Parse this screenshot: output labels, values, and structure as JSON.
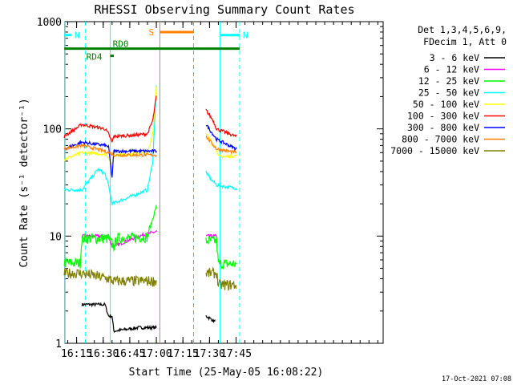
{
  "chart_data": {
    "type": "line",
    "title": "RHESSI Observing Summary Count Rates",
    "xlabel": "Start Time (25-May-05 16:08:22)",
    "ylabel": "Count Rate (s⁻¹ detector⁻¹)",
    "yscale": "log",
    "ylim": [
      1,
      1000
    ],
    "xlim_minutes_after_16_00": [
      8.4,
      188
    ],
    "x_ticks": [
      "16:15",
      "16:30",
      "16:45",
      "17:00",
      "17:15",
      "17:30",
      "17:45"
    ],
    "y_ticks": [
      "1",
      "10",
      "100",
      "1000"
    ],
    "footer_date": "17-Oct-2021 07:08",
    "legend_header": [
      "Det 1,3,4,5,6,9,",
      "FDecim 1, Att 0"
    ],
    "legend_placement": "right",
    "series": [
      {
        "name": "3 - 6 keV",
        "color": "#000000",
        "x": [
          "16:08",
          "16:17",
          "16:18",
          "16:31",
          "16:33",
          "16:35",
          "16:36",
          "16:50",
          "17:00",
          "17:01",
          "17:27",
          "17:28",
          "17:33",
          "17:34"
        ],
        "y": [
          null,
          null,
          2.3,
          2.3,
          1.8,
          1.8,
          1.3,
          1.4,
          1.4,
          null,
          null,
          1.8,
          1.6,
          null
        ]
      },
      {
        "name": "6 - 12 keV",
        "color": "#ff00ff",
        "x": [
          "16:17",
          "16:18",
          "16:33",
          "16:35",
          "16:36",
          "16:50",
          "17:00",
          "17:01",
          "17:27",
          "17:28",
          "17:34",
          "17:35"
        ],
        "y": [
          null,
          10,
          10,
          8,
          8,
          10,
          11,
          null,
          null,
          10,
          10,
          null
        ]
      },
      {
        "name": "12 - 25 keV",
        "color": "#00ff00",
        "x": [
          "16:08",
          "16:17",
          "16:18",
          "16:33",
          "16:36",
          "16:38",
          "16:55",
          "17:00",
          "17:01",
          "17:27",
          "17:28",
          "17:34",
          "17:35",
          "17:45"
        ],
        "y": [
          5.6,
          5.6,
          9.5,
          9.5,
          8,
          9.5,
          9.8,
          19,
          null,
          null,
          9,
          9,
          5.5,
          5.5
        ]
      },
      {
        "name": "25 - 50 keV",
        "color": "#00ffff",
        "x": [
          "16:08",
          "16:18",
          "16:27",
          "16:31",
          "16:33",
          "16:35",
          "16:50",
          "16:55",
          "16:58",
          "17:00",
          "17:01",
          "17:27",
          "17:28",
          "17:30",
          "17:34",
          "17:38",
          "17:45"
        ],
        "y": [
          27,
          27,
          42,
          38,
          30,
          20,
          25,
          27,
          50,
          250,
          null,
          null,
          40,
          35,
          30,
          29,
          28
        ]
      },
      {
        "name": "50 - 100 keV",
        "color": "#ffff00",
        "x": [
          "16:08",
          "16:18",
          "16:31",
          "16:33",
          "16:35",
          "16:36",
          "16:55",
          "16:58",
          "17:00",
          "17:01",
          "17:27",
          "17:28",
          "17:34",
          "17:35",
          "17:45"
        ],
        "y": [
          52,
          60,
          58,
          55,
          45,
          57,
          60,
          90,
          250,
          null,
          null,
          90,
          65,
          55,
          56
        ]
      },
      {
        "name": "100 - 300 keV",
        "color": "#ff0000",
        "x": [
          "16:08",
          "16:18",
          "16:31",
          "16:33",
          "16:35",
          "16:36",
          "16:50",
          "16:55",
          "16:58",
          "17:00",
          "17:01",
          "17:27",
          "17:28",
          "17:32",
          "17:34",
          "17:45"
        ],
        "y": [
          85,
          110,
          100,
          90,
          75,
          85,
          88,
          90,
          120,
          200,
          null,
          null,
          150,
          120,
          100,
          85
        ]
      },
      {
        "name": "300 - 800 keV",
        "color": "#0000ff",
        "x": [
          "16:08",
          "16:18",
          "16:31",
          "16:33",
          "16:35",
          "16:36",
          "17:00",
          "17:01",
          "17:27",
          "17:28",
          "17:34",
          "17:45"
        ],
        "y": [
          65,
          75,
          70,
          68,
          35,
          62,
          62,
          null,
          null,
          110,
          80,
          65
        ]
      },
      {
        "name": "800 - 7000 keV",
        "color": "#ff8000",
        "x": [
          "16:08",
          "16:18",
          "16:31",
          "16:33",
          "16:36",
          "17:00",
          "17:01",
          "17:27",
          "17:28",
          "17:34",
          "17:45"
        ],
        "y": [
          65,
          70,
          62,
          60,
          57,
          57,
          null,
          null,
          85,
          65,
          60
        ]
      },
      {
        "name": "7000 - 15000 keV",
        "color": "#808000",
        "x": [
          "16:08",
          "16:17",
          "16:18",
          "16:33",
          "16:36",
          "17:00",
          "17:01",
          "17:27",
          "17:28",
          "17:34",
          "17:35",
          "17:45"
        ],
        "y": [
          4.5,
          4.5,
          4.5,
          4,
          3.8,
          3.8,
          null,
          null,
          4.5,
          4.5,
          3.5,
          3.5
        ]
      }
    ],
    "event_bars": [
      {
        "label": "N",
        "color": "#00ffff",
        "x_start": "16:08",
        "x_end": "16:12",
        "y": 750
      },
      {
        "label": "N",
        "color": "#00ffff",
        "x_start": "17:36",
        "x_end": "17:47",
        "y": 750
      },
      {
        "label": "S",
        "color": "#ff8000",
        "x_start": "17:02",
        "x_end": "17:21",
        "y": 800
      },
      {
        "label": "RD0",
        "color": "#008000",
        "x_start": "16:08",
        "x_end": "17:47",
        "y": 560
      },
      {
        "label": "RD4",
        "color": "#008000",
        "x_start": "16:34",
        "x_end": "16:36",
        "y": 480
      }
    ],
    "vertical_lines": [
      {
        "x": "16:08:30",
        "color": "#00ffff",
        "style": "solid"
      },
      {
        "x": "16:20",
        "color": "#00ffff",
        "style": "dashed"
      },
      {
        "x": "16:34",
        "color": "#00ffff",
        "style": "solid"
      },
      {
        "x": "17:02",
        "color": "#ff8000",
        "style": "solid"
      },
      {
        "x": "17:21",
        "color": "#ff8000",
        "style": "dashed"
      },
      {
        "x": "17:36",
        "color": "#00ffff",
        "style": "solid"
      },
      {
        "x": "17:47",
        "color": "#00ffff",
        "style": "dashed"
      }
    ]
  }
}
